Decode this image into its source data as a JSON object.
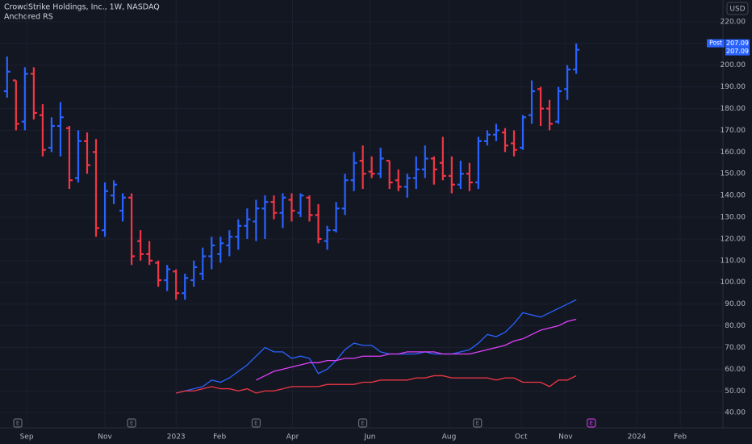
{
  "header": {
    "title": "CrowdStrike Holdings, Inc., 1W, NASDAQ",
    "indicator": "Anchored RS",
    "currency": "USD"
  },
  "chart_data": {
    "type": "ohlc",
    "up_color": "#2962ff",
    "down_color": "#f23645",
    "open": [
      188,
      193,
      174,
      196,
      177,
      162,
      172,
      171,
      148,
      165,
      160,
      124,
      140,
      133,
      139,
      119,
      113,
      109,
      101,
      105,
      95,
      101,
      104,
      112,
      113,
      117,
      121,
      126,
      128,
      134,
      137,
      132,
      138,
      132,
      139,
      131,
      119,
      124,
      134,
      147,
      156,
      151,
      150,
      156,
      147,
      144,
      148,
      152,
      157,
      155,
      149,
      145,
      150,
      146,
      165,
      168,
      169,
      164,
      162,
      177,
      189,
      180,
      174,
      189,
      198
    ],
    "high": [
      204,
      193,
      199,
      199,
      182,
      176,
      183,
      172,
      170,
      169,
      166,
      146,
      147,
      141,
      141,
      124,
      119,
      110,
      108,
      106,
      104,
      110,
      116,
      121,
      121,
      124,
      129,
      134,
      138,
      140,
      140,
      141,
      141,
      141,
      140,
      136,
      126,
      137,
      150,
      160,
      163,
      158,
      162,
      156,
      152,
      150,
      158,
      163,
      158,
      167,
      158,
      156,
      155,
      167,
      170,
      173,
      171,
      170,
      177,
      193,
      190,
      184,
      190,
      200,
      210
    ],
    "low": [
      185,
      170,
      170,
      175,
      158,
      160,
      158,
      143,
      146,
      150,
      121,
      121,
      136,
      128,
      108,
      110,
      108,
      98,
      96,
      92,
      92,
      98,
      101,
      106,
      109,
      112,
      115,
      120,
      119,
      120,
      129,
      125,
      128,
      130,
      128,
      118,
      115,
      123,
      131,
      142,
      143,
      148,
      148,
      143,
      142,
      139,
      143,
      148,
      145,
      147,
      141,
      143,
      142,
      143,
      163,
      165,
      160,
      158,
      161,
      173,
      172,
      170,
      173,
      184,
      196
    ],
    "close": [
      197,
      173,
      196,
      178,
      161,
      172,
      176,
      147,
      165,
      154,
      125,
      142,
      145,
      139,
      112,
      113,
      110,
      101,
      106,
      95,
      102,
      107,
      112,
      117,
      118,
      121,
      126,
      129,
      134,
      137,
      132,
      139,
      133,
      140,
      131,
      120,
      124,
      134,
      147,
      155,
      150,
      150,
      157,
      146,
      144,
      148,
      152,
      157,
      152,
      149,
      145,
      150,
      146,
      165,
      168,
      170,
      163,
      161,
      176,
      188,
      180,
      173,
      188,
      198,
      207.09
    ],
    "lines": [
      {
        "color": "#2962ff",
        "values": [
          null,
          null,
          null,
          null,
          null,
          null,
          null,
          null,
          null,
          null,
          null,
          null,
          null,
          null,
          null,
          null,
          null,
          null,
          null,
          49,
          50,
          51,
          52,
          55,
          54,
          56,
          59,
          62,
          66,
          70,
          68,
          68,
          65,
          66,
          65,
          58,
          60,
          64,
          69,
          72,
          71,
          71,
          68,
          67,
          67,
          67,
          67,
          68,
          67,
          67,
          67,
          68,
          69,
          72,
          76,
          75,
          77,
          81,
          86,
          85,
          84,
          86,
          88,
          90,
          92
        ]
      },
      {
        "color": "#e040fb",
        "values": [
          null,
          null,
          null,
          null,
          null,
          null,
          null,
          null,
          null,
          null,
          null,
          null,
          null,
          null,
          null,
          null,
          null,
          null,
          null,
          null,
          null,
          null,
          null,
          null,
          null,
          null,
          null,
          null,
          55,
          57,
          59,
          60,
          61,
          62,
          63,
          63,
          64,
          64,
          65,
          65,
          66,
          66,
          66,
          67,
          67,
          68,
          68,
          68,
          68,
          67,
          67,
          67,
          67,
          68,
          69,
          70,
          71,
          73,
          74,
          76,
          78,
          79,
          80,
          82,
          83
        ]
      },
      {
        "color": "#f23645",
        "values": [
          null,
          null,
          null,
          null,
          null,
          null,
          null,
          null,
          null,
          null,
          null,
          null,
          null,
          null,
          null,
          null,
          null,
          null,
          null,
          49,
          50,
          50,
          51,
          52,
          51,
          51,
          50,
          51,
          49,
          50,
          50,
          51,
          52,
          52,
          52,
          52,
          53,
          53,
          53,
          53,
          54,
          54,
          55,
          55,
          55,
          55,
          56,
          56,
          57,
          57,
          56,
          56,
          56,
          56,
          56,
          55,
          56,
          56,
          54,
          54,
          54,
          52,
          55,
          55,
          57
        ]
      }
    ],
    "last_price_tag": "Post",
    "ylim": [
      33,
      230
    ],
    "yticks": [
      {
        "value": 40,
        "label": "40.00"
      },
      {
        "value": 50,
        "label": "50.00"
      },
      {
        "value": 60,
        "label": "60.00"
      },
      {
        "value": 70,
        "label": "70.00"
      },
      {
        "value": 80,
        "label": "80.00"
      },
      {
        "value": 90,
        "label": "90.00"
      },
      {
        "value": 100,
        "label": "100.00"
      },
      {
        "value": 110,
        "label": "110.00"
      },
      {
        "value": 120,
        "label": "120.00"
      },
      {
        "value": 130,
        "label": "130.00"
      },
      {
        "value": 140,
        "label": "140.00"
      },
      {
        "value": 150,
        "label": "150.00"
      },
      {
        "value": 160,
        "label": "160.00"
      },
      {
        "value": 170,
        "label": "170.00"
      },
      {
        "value": 180,
        "label": "180.00"
      },
      {
        "value": 190,
        "label": "190.00"
      },
      {
        "value": 200,
        "label": "200.00"
      },
      {
        "value": 210,
        "label": "210.00"
      },
      {
        "value": 220,
        "label": "220.00"
      }
    ],
    "xlim": [
      -0.8,
      80.5
    ],
    "xticks": [
      {
        "value": 2.2,
        "label": "Sep"
      },
      {
        "value": 11,
        "label": "Nov"
      },
      {
        "value": 19,
        "label": "2023"
      },
      {
        "value": 23.9,
        "label": "Feb"
      },
      {
        "value": 32.1,
        "label": "Apr"
      },
      {
        "value": 40.8,
        "label": "Jun"
      },
      {
        "value": 49.7,
        "label": "Aug"
      },
      {
        "value": 57.8,
        "label": "Oct"
      },
      {
        "value": 62.8,
        "label": "Nov"
      },
      {
        "value": 70.8,
        "label": "2024"
      },
      {
        "value": 75.7,
        "label": "Feb"
      }
    ],
    "grid": true,
    "events": [
      {
        "x": 1.2,
        "label": "E",
        "color": "#787b86"
      },
      {
        "x": 14,
        "label": "E",
        "color": "#787b86"
      },
      {
        "x": 28,
        "label": "E",
        "color": "#787b86"
      },
      {
        "x": 40,
        "label": "E",
        "color": "#787b86"
      },
      {
        "x": 52.9,
        "label": "E",
        "color": "#787b86"
      },
      {
        "x": 65.7,
        "label": "E",
        "color": "#e040fb"
      }
    ]
  }
}
